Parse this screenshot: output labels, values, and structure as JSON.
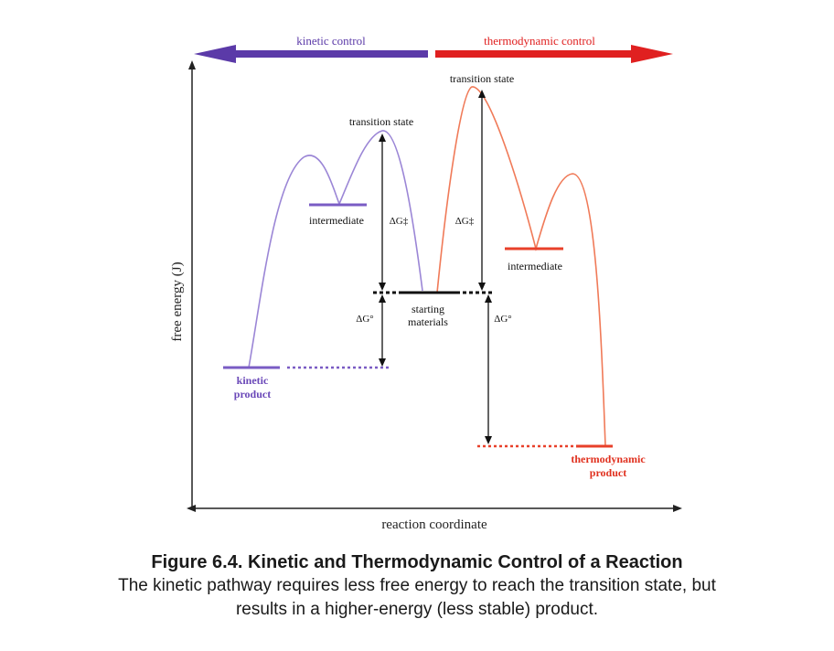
{
  "header": {
    "kinetic_control": "kinetic control",
    "thermodynamic_control": "thermodynamic control"
  },
  "axes": {
    "y_label": "free energy (J)",
    "x_label": "reaction coordinate"
  },
  "labels": {
    "transition_state_kinetic": "transition state",
    "transition_state_thermo": "transition state",
    "intermediate_kinetic": "intermediate",
    "intermediate_thermo": "intermediate",
    "starting_materials_line1": "starting",
    "starting_materials_line2": "materials",
    "kinetic_product_line1": "kinetic",
    "kinetic_product_line2": "product",
    "thermo_product_line1": "thermodynamic",
    "thermo_product_line2": "product",
    "delta_g_activation_kinetic": "ΔG‡",
    "delta_g_activation_thermo": "ΔG‡",
    "delta_g_standard_kinetic": "ΔG°",
    "delta_g_standard_thermo": "ΔG°"
  },
  "colors": {
    "kinetic": "#7a5cc4",
    "kinetic_arrow": "#5b3aa8",
    "thermodynamic": "#e8603c",
    "thermodynamic_arrow": "#e02020",
    "starting": "#111111"
  },
  "caption": {
    "title": "Figure 6.4.  Kinetic and Thermodynamic Control of a Reaction",
    "body_line1": "The kinetic pathway requires less free energy to reach the transition state, but",
    "body_line2": "results in a higher-energy (less stable) product."
  }
}
